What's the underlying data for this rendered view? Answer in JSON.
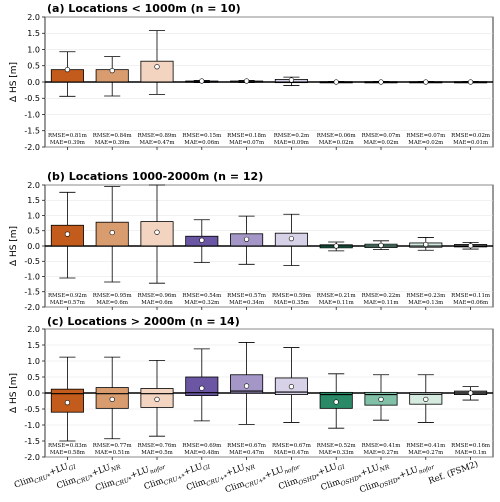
{
  "chart_data": {
    "type": "box",
    "categories": [
      {
        "base": "Clim",
        "sup": "CRU*",
        "suffix": "+LU",
        "sub": "GI"
      },
      {
        "base": "Clim",
        "sup": "CRU*",
        "suffix": "+LU",
        "sub": "NR"
      },
      {
        "base": "Clim",
        "sup": "CRU*",
        "suffix": "+LU",
        "sub": "nofor"
      },
      {
        "base": "Clim",
        "sup": "CRU+*",
        "suffix": "+LU",
        "sub": "GI"
      },
      {
        "base": "Clim",
        "sup": "CRU+*",
        "suffix": "+LU",
        "sub": "NR"
      },
      {
        "base": "Clim",
        "sup": "CRU+*",
        "suffix": "+LU",
        "sub": "nofor"
      },
      {
        "base": "Clim",
        "sup": "OSHD*",
        "suffix": "+LU",
        "sub": "GI"
      },
      {
        "base": "Clim",
        "sup": "OSHD*",
        "suffix": "+LU",
        "sub": "NR"
      },
      {
        "base": "Clim",
        "sup": "OSHD*",
        "suffix": "+LU",
        "sub": "nofor"
      },
      {
        "base": "Ref. (FSM2)",
        "sup": "",
        "suffix": "",
        "sub": ""
      }
    ],
    "colors": [
      "#c25b1b",
      "#d99c6e",
      "#f2d4c0",
      "#6a56a3",
      "#a497c8",
      "#d8d2e8",
      "#2a8a67",
      "#7fc0a7",
      "#d5ebe0",
      "#777777"
    ],
    "ylabel": "Δ HS [m]",
    "ylim": [
      -2.0,
      2.0
    ],
    "yticks": [
      "2.0",
      "1.5",
      "1.0",
      "0.5",
      "0.0",
      "-0.5",
      "-1.0",
      "-1.5",
      "-2.0"
    ],
    "panels": [
      {
        "title": "(a) Locations < 1000m (n = 10)",
        "boxes": [
          {
            "q1": 0.0,
            "median": 0.0,
            "q3": 0.38,
            "whislo": -0.44,
            "whishi": 0.93,
            "mean": 0.38
          },
          {
            "q1": 0.0,
            "median": 0.0,
            "q3": 0.38,
            "whislo": -0.43,
            "whishi": 0.78,
            "mean": 0.35
          },
          {
            "q1": 0.0,
            "median": 0.0,
            "q3": 0.64,
            "whislo": -0.38,
            "whishi": 1.58,
            "mean": 0.47
          },
          {
            "q1": 0.0,
            "median": 0.0,
            "q3": 0.03,
            "whislo": -0.02,
            "whishi": 0.05,
            "mean": 0.03
          },
          {
            "q1": 0.0,
            "median": 0.0,
            "q3": 0.03,
            "whislo": -0.02,
            "whishi": 0.05,
            "mean": 0.03
          },
          {
            "q1": -0.02,
            "median": 0.0,
            "q3": 0.08,
            "whislo": -0.11,
            "whishi": 0.15,
            "mean": 0.06
          },
          {
            "q1": 0.0,
            "median": 0.0,
            "q3": 0.01,
            "whislo": -0.01,
            "whishi": 0.02,
            "mean": 0.0
          },
          {
            "q1": 0.0,
            "median": 0.0,
            "q3": 0.01,
            "whislo": -0.01,
            "whishi": 0.02,
            "mean": 0.0
          },
          {
            "q1": 0.0,
            "median": 0.0,
            "q3": 0.01,
            "whislo": -0.01,
            "whishi": 0.02,
            "mean": 0.0
          },
          {
            "q1": 0.0,
            "median": 0.0,
            "q3": 0.01,
            "whislo": -0.01,
            "whishi": 0.02,
            "mean": 0.0
          }
        ],
        "stats": [
          {
            "rmse": "RMSE=0.81m",
            "mae": "MAE=0.39m"
          },
          {
            "rmse": "RMSE=0.84m",
            "mae": "MAE=0.39m"
          },
          {
            "rmse": "RMSE=0.89m",
            "mae": "MAE=0.47m"
          },
          {
            "rmse": "RMSE=0.15m",
            "mae": "MAE=0.06m"
          },
          {
            "rmse": "RMSE=0.18m",
            "mae": "MAE=0.07m"
          },
          {
            "rmse": "RMSE=0.2m",
            "mae": "MAE=0.09m"
          },
          {
            "rmse": "RMSE=0.06m",
            "mae": "MAE=0.02m"
          },
          {
            "rmse": "RMSE=0.07m",
            "mae": "MAE=0.02m"
          },
          {
            "rmse": "RMSE=0.07m",
            "mae": "MAE=0.02m"
          },
          {
            "rmse": "RMSE=0.02m",
            "mae": "MAE=0.01m"
          }
        ]
      },
      {
        "title": "(b) Locations 1000-2000m (n = 12)",
        "boxes": [
          {
            "q1": 0.0,
            "median": 0.0,
            "q3": 0.68,
            "whislo": -1.05,
            "whishi": 1.76,
            "mean": 0.39
          },
          {
            "q1": 0.0,
            "median": 0.0,
            "q3": 0.78,
            "whislo": -1.18,
            "whishi": 1.95,
            "mean": 0.44
          },
          {
            "q1": 0.0,
            "median": 0.0,
            "q3": 0.8,
            "whislo": -1.22,
            "whishi": 2.0,
            "mean": 0.45
          },
          {
            "q1": 0.0,
            "median": 0.0,
            "q3": 0.32,
            "whislo": -0.54,
            "whishi": 0.86,
            "mean": 0.19
          },
          {
            "q1": 0.0,
            "median": 0.0,
            "q3": 0.4,
            "whislo": -0.6,
            "whishi": 0.98,
            "mean": 0.22
          },
          {
            "q1": 0.0,
            "median": 0.0,
            "q3": 0.42,
            "whislo": -0.64,
            "whishi": 1.04,
            "mean": 0.24
          },
          {
            "q1": -0.06,
            "median": 0.0,
            "q3": 0.04,
            "whislo": -0.16,
            "whishi": 0.13,
            "mean": 0.0
          },
          {
            "q1": -0.05,
            "median": 0.0,
            "q3": 0.06,
            "whislo": -0.12,
            "whishi": 0.17,
            "mean": 0.02
          },
          {
            "q1": -0.04,
            "median": 0.0,
            "q3": 0.1,
            "whislo": -0.14,
            "whishi": 0.28,
            "mean": 0.05
          },
          {
            "q1": -0.03,
            "median": 0.0,
            "q3": 0.05,
            "whislo": -0.1,
            "whishi": 0.12,
            "mean": 0.01
          }
        ],
        "stats": [
          {
            "rmse": "RMSE=0.92m",
            "mae": "MAE=0.57m"
          },
          {
            "rmse": "RMSE=0.95m",
            "mae": "MAE=0.6m"
          },
          {
            "rmse": "RMSE=0.96m",
            "mae": "MAE=0.6m"
          },
          {
            "rmse": "RMSE=0.54m",
            "mae": "MAE=0.32m"
          },
          {
            "rmse": "RMSE=0.57m",
            "mae": "MAE=0.34m"
          },
          {
            "rmse": "RMSE=0.59m",
            "mae": "MAE=0.35m"
          },
          {
            "rmse": "RMSE=0.21m",
            "mae": "MAE=0.11m"
          },
          {
            "rmse": "RMSE=0.22m",
            "mae": "MAE=0.11m"
          },
          {
            "rmse": "RMSE=0.23m",
            "mae": "MAE=0.13m"
          },
          {
            "rmse": "RMSE=0.11m",
            "mae": "MAE=0.06m"
          }
        ]
      },
      {
        "title": "(c) Locations > 2000m (n = 14)",
        "boxes": [
          {
            "q1": -0.6,
            "median": -0.02,
            "q3": 0.12,
            "whislo": -1.5,
            "whishi": 1.12,
            "mean": -0.3
          },
          {
            "q1": -0.48,
            "median": -0.02,
            "q3": 0.17,
            "whislo": -1.43,
            "whishi": 1.12,
            "mean": -0.2
          },
          {
            "q1": -0.45,
            "median": -0.02,
            "q3": 0.14,
            "whislo": -1.35,
            "whishi": 1.02,
            "mean": -0.2
          },
          {
            "q1": -0.08,
            "median": 0.01,
            "q3": 0.5,
            "whislo": -0.87,
            "whishi": 1.38,
            "mean": 0.15
          },
          {
            "q1": 0.0,
            "median": 0.06,
            "q3": 0.57,
            "whislo": -0.98,
            "whishi": 1.58,
            "mean": 0.22
          },
          {
            "q1": -0.05,
            "median": 0.03,
            "q3": 0.47,
            "whislo": -0.92,
            "whishi": 1.42,
            "mean": 0.2
          },
          {
            "q1": -0.48,
            "median": -0.05,
            "q3": 0.02,
            "whislo": -1.1,
            "whishi": 0.6,
            "mean": -0.28
          },
          {
            "q1": -0.38,
            "median": -0.05,
            "q3": 0.02,
            "whislo": -0.85,
            "whishi": 0.57,
            "mean": -0.2
          },
          {
            "q1": -0.35,
            "median": -0.04,
            "q3": 0.01,
            "whislo": -0.92,
            "whishi": 0.57,
            "mean": -0.2
          },
          {
            "q1": -0.05,
            "median": 0.0,
            "q3": 0.06,
            "whislo": -0.22,
            "whishi": 0.2,
            "mean": 0.0
          }
        ],
        "stats": [
          {
            "rmse": "RMSE=0.83m",
            "mae": "MAE=0.58m"
          },
          {
            "rmse": "RMSE=0.77m",
            "mae": "MAE=0.51m"
          },
          {
            "rmse": "RMSE=0.76m",
            "mae": "MAE=0.5m"
          },
          {
            "rmse": "RMSE=0.69m",
            "mae": "MAE=0.48m"
          },
          {
            "rmse": "RMSE=0.67m",
            "mae": "MAE=0.47m"
          },
          {
            "rmse": "RMSE=0.67m",
            "mae": "MAE=0.47m"
          },
          {
            "rmse": "RMSE=0.52m",
            "mae": "MAE=0.33m"
          },
          {
            "rmse": "RMSE=0.41m",
            "mae": "MAE=0.27m"
          },
          {
            "rmse": "RMSE=0.41m",
            "mae": "MAE=0.27m"
          },
          {
            "rmse": "RMSE=0.16m",
            "mae": "MAE=0.1m"
          }
        ]
      }
    ]
  }
}
